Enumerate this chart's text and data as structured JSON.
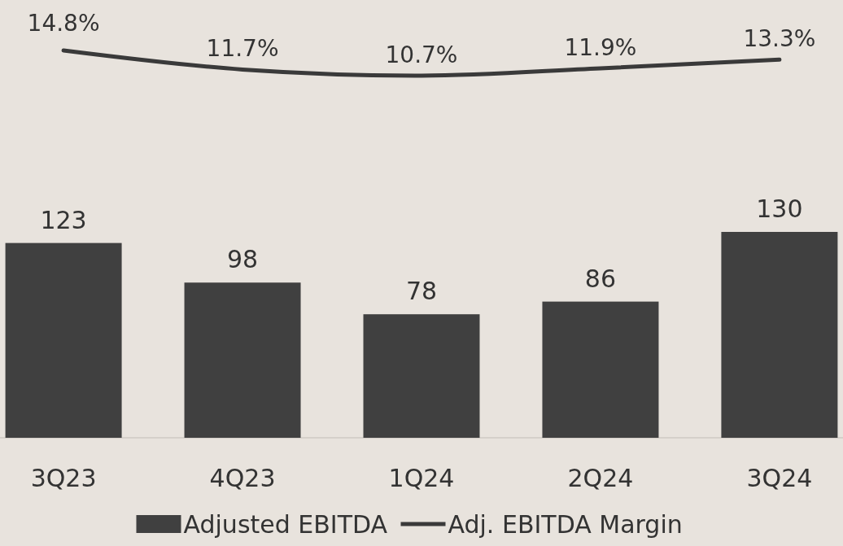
{
  "chart_data": [
    {
      "type": "line",
      "categories": [
        null,
        null,
        null,
        null,
        null
      ],
      "series": [
        {
          "name": "Adj. EBITDA Margin",
          "color": "#3a3a3a",
          "values": [
            14.8,
            11.7,
            10.7,
            11.9,
            13.3
          ],
          "value_labels": [
            "14.8%",
            "11.7%",
            "10.7%",
            "11.9%",
            "13.3%"
          ]
        }
      ],
      "marker": "none",
      "line_style": "solid"
    },
    {
      "type": "bar",
      "categories": [
        "3Q23",
        "4Q23",
        "1Q24",
        "2Q24",
        "3Q24"
      ],
      "series": [
        {
          "name": "Adjusted EBITDA",
          "color": "#404040",
          "values": [
            123,
            98,
            78,
            86,
            130
          ]
        }
      ],
      "data_labels": true,
      "legend": "bottom"
    }
  ]
}
